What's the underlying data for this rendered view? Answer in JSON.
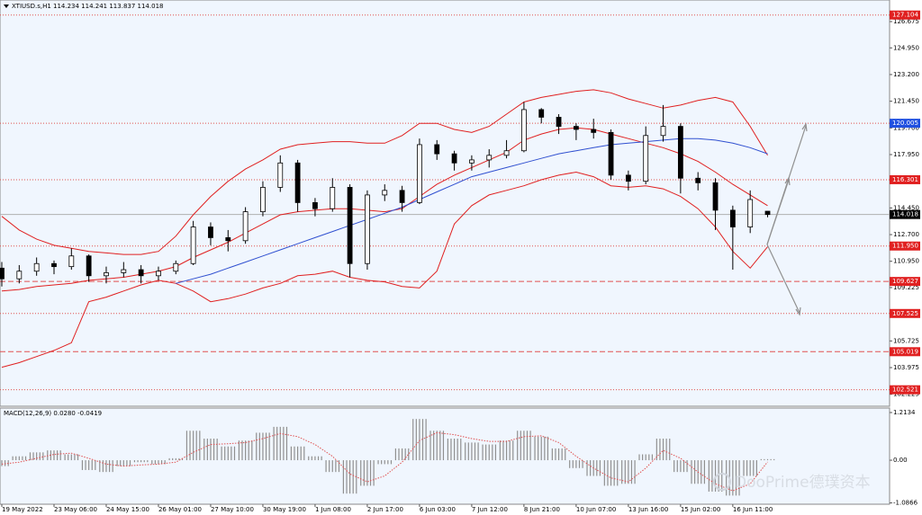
{
  "chart_data": [
    {
      "type": "candlestick",
      "title": "XTIUSD.s,H1 114.234 114.241 113.837 114.018",
      "categories": [
        "19 May 2022",
        null,
        null,
        "23 May 06:00",
        null,
        null,
        "24 May 15:00",
        null,
        null,
        "26 May 01:00",
        null,
        null,
        "27 May 10:00",
        null,
        null,
        "30 May 19:00",
        null,
        null,
        "1 Jun 08:00",
        null,
        null,
        "2 Jun 17:00",
        null,
        null,
        "6 Jun 03:00",
        null,
        null,
        "7 Jun 12:00",
        null,
        null,
        "8 Jun 21:00",
        null,
        null,
        "10 Jun 07:00",
        null,
        null,
        "13 Jun 16:00",
        null,
        null,
        "15 Jun 02:00",
        null,
        null,
        "16 Jun 11:00",
        null,
        null
      ],
      "open": [
        110.5,
        109.8,
        110.3,
        110.8,
        110.6,
        111.3,
        110.0,
        110.2,
        110.4,
        110.0,
        110.3,
        110.8,
        113.2,
        112.5,
        112.3,
        114.2,
        115.8,
        117.4,
        114.8,
        114.4,
        115.8,
        110.8,
        115.3,
        115.6,
        114.8,
        118.6,
        118.0,
        117.4,
        117.6,
        117.9,
        118.2,
        120.9,
        120.4,
        119.8,
        119.6,
        119.4,
        116.6,
        116.2,
        119.2,
        119.8,
        116.4,
        116.1,
        114.3,
        113.2,
        114.234
      ],
      "high": [
        110.9,
        110.7,
        111.2,
        111.0,
        111.8,
        111.4,
        110.6,
        110.9,
        110.7,
        110.6,
        111.0,
        113.6,
        113.5,
        113.0,
        114.5,
        116.2,
        117.9,
        117.6,
        115.1,
        116.4,
        116.0,
        115.6,
        116.0,
        115.9,
        119.0,
        118.9,
        118.2,
        117.9,
        118.3,
        118.9,
        121.4,
        121.0,
        120.6,
        120.0,
        120.3,
        119.6,
        116.9,
        119.8,
        121.2,
        120.0,
        116.8,
        116.4,
        114.6,
        115.6,
        114.241
      ],
      "low": [
        109.3,
        109.5,
        110.0,
        110.1,
        110.4,
        109.6,
        109.5,
        109.9,
        109.5,
        109.7,
        110.1,
        110.7,
        112.0,
        111.6,
        112.1,
        113.9,
        115.5,
        114.2,
        113.9,
        114.2,
        109.9,
        110.4,
        114.9,
        114.2,
        114.7,
        117.6,
        116.9,
        116.9,
        117.1,
        117.7,
        118.1,
        120.0,
        119.3,
        118.9,
        119.0,
        116.3,
        115.6,
        116.0,
        118.8,
        115.4,
        115.6,
        113.0,
        110.4,
        112.8,
        113.837
      ],
      "close": [
        109.8,
        110.3,
        110.8,
        110.6,
        111.3,
        110.0,
        110.2,
        110.4,
        110.0,
        110.3,
        110.8,
        113.2,
        112.5,
        112.3,
        114.2,
        115.8,
        117.4,
        114.8,
        114.4,
        115.8,
        110.8,
        115.3,
        115.6,
        114.8,
        118.6,
        118.0,
        117.4,
        117.6,
        117.9,
        118.2,
        120.9,
        120.4,
        119.8,
        119.6,
        119.4,
        116.6,
        116.2,
        119.2,
        119.8,
        116.4,
        116.1,
        114.3,
        113.2,
        115.0,
        114.018
      ],
      "color_up": "#ffffff",
      "color_down": "#000000",
      "series": [
        {
          "color": "#e02020",
          "values": [
            113.9,
            113.0,
            112.4,
            112.0,
            111.8,
            111.6,
            111.5,
            111.4,
            111.4,
            111.6,
            112.6,
            114.0,
            115.2,
            116.2,
            117.0,
            117.6,
            118.3,
            118.6,
            118.7,
            118.8,
            118.8,
            118.7,
            118.7,
            119.2,
            120.0,
            120.0,
            119.6,
            119.4,
            119.8,
            120.6,
            121.4,
            121.7,
            121.9,
            122.1,
            122.2,
            122.0,
            121.6,
            121.3,
            121.0,
            121.2,
            121.5,
            121.7,
            121.4,
            119.8,
            117.9
          ]
        },
        {
          "color": "#e02020",
          "values": [
            109.0,
            109.1,
            109.3,
            109.4,
            109.5,
            109.7,
            109.8,
            109.9,
            110.1,
            110.3,
            110.6,
            111.2,
            111.7,
            112.2,
            112.8,
            113.4,
            114.0,
            114.2,
            114.3,
            114.4,
            114.4,
            114.3,
            114.2,
            114.4,
            115.2,
            116.0,
            116.6,
            117.1,
            117.6,
            118.1,
            118.9,
            119.3,
            119.6,
            119.7,
            119.6,
            119.3,
            119.0,
            118.7,
            118.4,
            118.0,
            117.5,
            116.8,
            116.0,
            115.3,
            114.6
          ]
        },
        {
          "color": "#e02020",
          "values": [
            104.0,
            104.3,
            104.7,
            105.1,
            105.6,
            108.3,
            108.6,
            109.0,
            109.4,
            109.7,
            109.5,
            109.0,
            108.3,
            108.5,
            108.8,
            109.2,
            109.5,
            110.0,
            110.1,
            110.3,
            109.9,
            109.7,
            109.6,
            109.3,
            109.2,
            110.3,
            113.4,
            114.6,
            115.3,
            115.6,
            115.9,
            116.3,
            116.6,
            116.8,
            116.5,
            115.9,
            115.8,
            115.9,
            115.7,
            115.2,
            114.4,
            113.2,
            111.6,
            110.5,
            111.9
          ]
        },
        {
          "color": "#3050d0",
          "values": [
            null,
            null,
            null,
            null,
            null,
            null,
            null,
            null,
            null,
            null,
            109.5,
            109.8,
            110.1,
            110.5,
            110.9,
            111.3,
            111.7,
            112.1,
            112.5,
            112.9,
            113.3,
            113.7,
            114.1,
            114.5,
            115.0,
            115.5,
            116.0,
            116.5,
            116.8,
            117.1,
            117.4,
            117.7,
            118.0,
            118.2,
            118.4,
            118.6,
            118.7,
            118.8,
            118.9,
            119.0,
            119.0,
            118.9,
            118.7,
            118.4,
            118.0
          ]
        }
      ],
      "levels": [
        {
          "value": 127.104,
          "color": "#e05050",
          "dash": "dotted",
          "box": "#e02020"
        },
        {
          "value": 120.005,
          "color": "#e05050",
          "dash": "dotted",
          "box": "#2050e0"
        },
        {
          "value": 116.301,
          "color": "#e05050",
          "dash": "dotted",
          "box": "#e02020"
        },
        {
          "value": 114.018,
          "color": "#b0b0b0",
          "dash": "solid",
          "box": "#000000"
        },
        {
          "value": 111.95,
          "color": "#e05050",
          "dash": "dotted",
          "box": "#e02020"
        },
        {
          "value": 109.627,
          "color": "#e05050",
          "dash": "dashed",
          "box": "#e02020"
        },
        {
          "value": 107.525,
          "color": "#e05050",
          "dash": "dotted",
          "box": "#e02020"
        },
        {
          "value": 105.019,
          "color": "#e05050",
          "dash": "dashed",
          "box": "#e02020"
        },
        {
          "value": 102.521,
          "color": "#e05050",
          "dash": "dotted",
          "box": "#e02020"
        }
      ],
      "level_labels": [
        "127.104",
        "120.005",
        "116.301",
        "114.018",
        "111.950",
        "109.627",
        "107.525",
        "105.019",
        "102.521"
      ],
      "ylim": [
        101.44,
        128.09
      ],
      "yticks": [
        126.675,
        {
          "value": 124.95,
          "label": "124.950"
        },
        {
          "value": 123.2,
          "label": "123.200"
        },
        {
          "value": 121.45,
          "label": "121.450"
        },
        {
          "value": 119.7,
          "label": "119.700"
        },
        {
          "value": 117.95,
          "label": "117.950"
        },
        {
          "value": 114.45,
          "label": "114.450"
        },
        {
          "value": 112.7,
          "label": "112.700"
        },
        {
          "value": 110.95,
          "label": "110.950"
        },
        109.225,
        105.725,
        103.975,
        102.225
      ]
    },
    {
      "type": "macd",
      "title": "MACD(12,26,9) 0.0280 -0.0419",
      "values": [
        -0.15,
        0.1,
        0.2,
        0.25,
        0.15,
        -0.25,
        -0.3,
        -0.15,
        -0.05,
        -0.1,
        0.05,
        0.75,
        0.55,
        0.35,
        0.5,
        0.7,
        0.85,
        0.35,
        0.1,
        -0.3,
        -0.85,
        -0.65,
        -0.1,
        0.3,
        1.05,
        0.75,
        0.55,
        0.45,
        0.4,
        0.5,
        0.75,
        0.6,
        0.3,
        -0.2,
        -0.4,
        -0.65,
        -0.6,
        0.15,
        0.55,
        -0.3,
        -0.6,
        -0.8,
        -0.9,
        -0.4,
        0.028
      ],
      "color": "#909090",
      "series": [
        {
          "color": "#e05050",
          "values": [
            -0.1,
            -0.05,
            0.05,
            0.15,
            0.18,
            0.05,
            -0.1,
            -0.15,
            -0.12,
            -0.1,
            -0.05,
            0.2,
            0.4,
            0.42,
            0.45,
            0.55,
            0.68,
            0.6,
            0.4,
            0.1,
            -0.35,
            -0.55,
            -0.4,
            -0.05,
            0.5,
            0.7,
            0.65,
            0.55,
            0.48,
            0.48,
            0.6,
            0.62,
            0.45,
            0.1,
            -0.2,
            -0.45,
            -0.55,
            -0.2,
            0.25,
            0.05,
            -0.3,
            -0.6,
            -0.78,
            -0.6,
            -0.0419
          ]
        }
      ],
      "ylim": [
        -1.12,
        1.328
      ],
      "yticks": [
        1.2134,
        {
          "value": 0,
          "label": "0.00"
        },
        -1.0866
      ]
    }
  ],
  "watermark": "DooPrime德璞资本"
}
